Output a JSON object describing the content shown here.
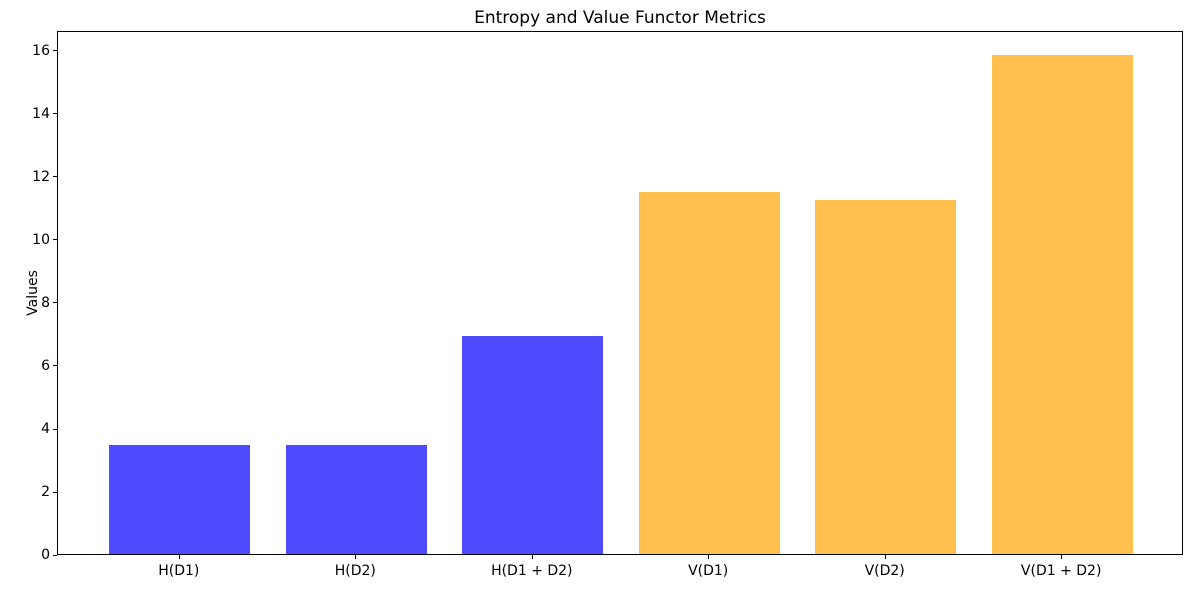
{
  "title": "Entropy and Value Functor Metrics",
  "colors": {
    "entropy_bar": "#4D4DFF",
    "value_bar": "#FFC04D",
    "axis": "#000000",
    "background": "#FFFFFF"
  },
  "chart_data": {
    "type": "bar",
    "title": "Entropy and Value Functor Metrics",
    "xlabel": "",
    "ylabel": "Values",
    "categories": [
      "H(D1)",
      "H(D2)",
      "H(D1 + D2)",
      "V(D1)",
      "V(D2)",
      "V(D1 + D2)"
    ],
    "values": [
      3.46,
      3.46,
      6.92,
      11.5,
      11.24,
      15.84
    ],
    "bar_colors": [
      "#4D4DFF",
      "#4D4DFF",
      "#4D4DFF",
      "#FFC04D",
      "#FFC04D",
      "#FFC04D"
    ],
    "ylim": [
      0,
      16.63
    ],
    "yticks": [
      0,
      2,
      4,
      6,
      8,
      10,
      12,
      14,
      16
    ],
    "grid": false,
    "legend_position": "none"
  }
}
